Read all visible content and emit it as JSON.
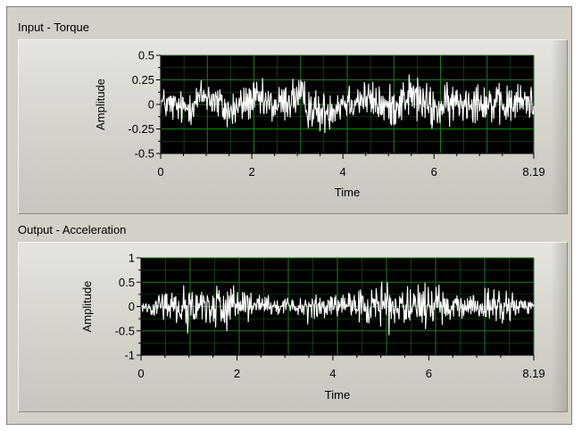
{
  "colors": {
    "panel": "#d4d0c8",
    "plot_background": "#000000",
    "grid": "#1f7a1f",
    "trace": "#ffffff"
  },
  "chart_data": [
    {
      "type": "line",
      "title": "Input - Torque",
      "xlabel": "Time",
      "ylabel": "Amplitude",
      "xlim": [
        0,
        8.19
      ],
      "ylim": [
        -0.5,
        0.5
      ],
      "x_ticks": [
        0,
        2,
        4,
        6,
        8.19
      ],
      "x_tick_labels": [
        "0",
        "2",
        "4",
        "6",
        "8.19"
      ],
      "y_ticks": [
        0.5,
        0.25,
        0,
        -0.25,
        -0.5
      ],
      "y_tick_labels": [
        "0.5",
        "0.25",
        "0",
        "-0.25",
        "-0.5"
      ],
      "grid": true,
      "series": [
        {
          "color": "#ffffff",
          "x": [
            0,
            0.5,
            1.0,
            1.5,
            2.0,
            2.5,
            3.0,
            3.5,
            4.0,
            4.5,
            5.0,
            5.5,
            6.0,
            6.5,
            7.0,
            7.5,
            8.0,
            8.19
          ],
          "values": [
            0.02,
            -0.05,
            0.1,
            -0.08,
            0.05,
            -0.02,
            0.08,
            -0.1,
            0.03,
            0.06,
            -0.04,
            0.1,
            -0.06,
            0.02,
            0.05,
            -0.03,
            0.04,
            0.0
          ],
          "envelope": [
            0.24,
            0.26,
            0.3,
            0.3,
            0.3,
            0.28,
            0.34,
            0.3,
            0.3,
            0.28,
            0.3,
            0.34,
            0.32,
            0.3,
            0.3,
            0.3,
            0.28,
            0.26
          ]
        }
      ]
    },
    {
      "type": "line",
      "title": "Output - Acceleration",
      "xlabel": "Time",
      "ylabel": "Amplitude",
      "xlim": [
        0,
        8.19
      ],
      "ylim": [
        -1,
        1
      ],
      "x_ticks": [
        0,
        2,
        4,
        6,
        8.19
      ],
      "x_tick_labels": [
        "0",
        "2",
        "4",
        "6",
        "8.19"
      ],
      "y_ticks": [
        1,
        0.5,
        0,
        -0.5,
        -1
      ],
      "y_tick_labels": [
        "1",
        "0.5",
        "0",
        "-0.5",
        "-1"
      ],
      "grid": true,
      "series": [
        {
          "color": "#ffffff",
          "x": [
            0,
            0.3,
            0.6,
            0.9,
            1.2,
            1.5,
            1.8,
            2.1,
            2.4,
            2.7,
            3.0,
            3.3,
            3.6,
            3.9,
            4.2,
            4.5,
            4.8,
            5.1,
            5.4,
            5.7,
            6.0,
            6.3,
            6.6,
            6.9,
            7.2,
            7.5,
            7.8,
            8.19
          ],
          "values": [
            0,
            0,
            0.02,
            0,
            -0.02,
            0.03,
            0,
            0,
            0.02,
            -0.03,
            0,
            0.02,
            -0.02,
            0,
            0,
            0.02,
            0,
            0.03,
            -0.02,
            0,
            0.02,
            0,
            -0.02,
            0,
            0.02,
            0,
            0,
            0
          ],
          "envelope": [
            0.15,
            0.3,
            0.55,
            0.75,
            0.5,
            0.65,
            0.75,
            0.45,
            0.35,
            0.3,
            0.25,
            0.3,
            0.45,
            0.35,
            0.3,
            0.4,
            0.65,
            0.78,
            0.55,
            0.6,
            0.75,
            0.45,
            0.35,
            0.35,
            0.45,
            0.5,
            0.35,
            0.15
          ]
        }
      ]
    }
  ]
}
